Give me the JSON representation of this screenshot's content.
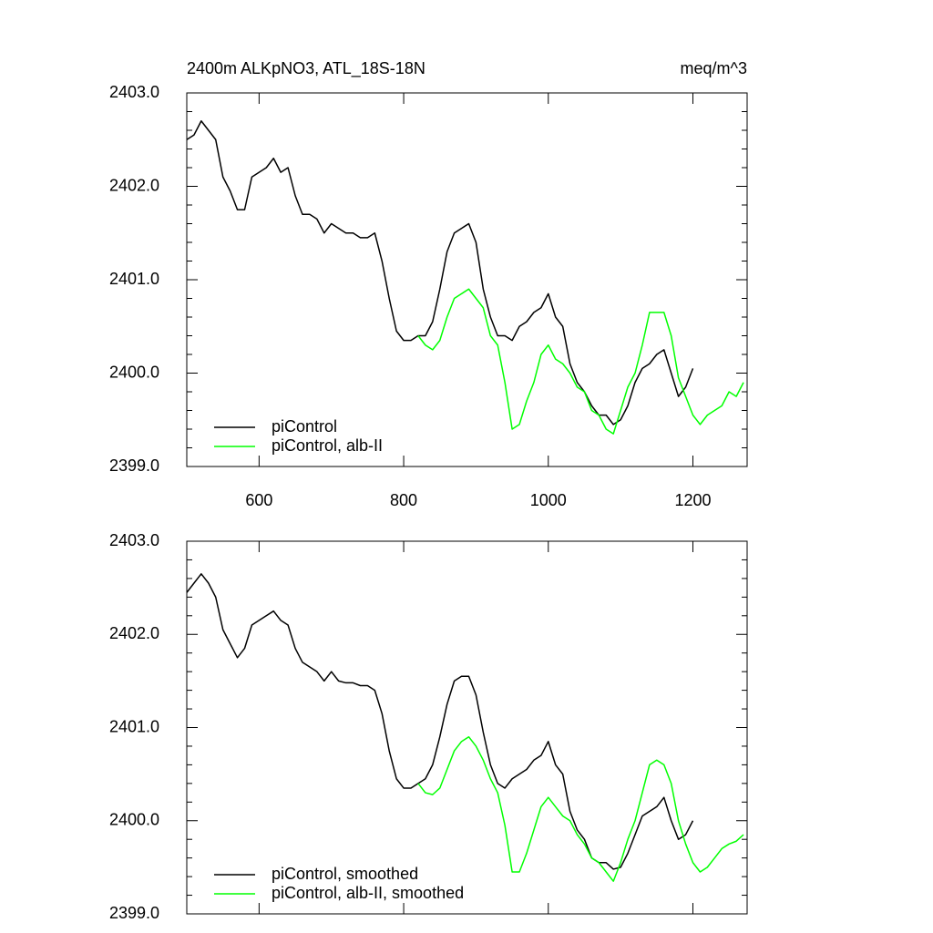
{
  "chart_data": [
    {
      "type": "line",
      "title": "2400m ALKpNO3, ATL_18S-18N",
      "right_title": "meq/m^3",
      "xlim": [
        500,
        1275
      ],
      "xticks": [
        600,
        800,
        1000,
        1200
      ],
      "xtick_labels": true,
      "ylim": [
        2399,
        2403
      ],
      "yticks": [
        {
          "value": 2399,
          "label": "2399.0"
        },
        {
          "value": 2400,
          "label": "2400.0"
        },
        {
          "value": 2401,
          "label": "2401.0"
        },
        {
          "value": 2402,
          "label": "2402.0"
        },
        {
          "value": 2403,
          "label": "2403.0"
        }
      ],
      "legend": "lower left",
      "series": [
        {
          "name": "piControl",
          "color": "#000000",
          "x": [
            500,
            510,
            520,
            530,
            540,
            550,
            560,
            570,
            580,
            590,
            600,
            610,
            620,
            630,
            640,
            650,
            660,
            670,
            680,
            690,
            700,
            710,
            720,
            730,
            740,
            750,
            760,
            770,
            780,
            790,
            800,
            810,
            820,
            830,
            840,
            850,
            860,
            870,
            880,
            890,
            900,
            910,
            920,
            930,
            940,
            950,
            960,
            970,
            980,
            990,
            1000,
            1010,
            1020,
            1030,
            1040,
            1050,
            1060,
            1070,
            1080,
            1090,
            1100,
            1110,
            1120,
            1130,
            1140,
            1150,
            1160,
            1170,
            1180,
            1190,
            1200
          ],
          "values": [
            2402.5,
            2402.55,
            2402.7,
            2402.6,
            2402.5,
            2402.1,
            2401.95,
            2401.75,
            2401.75,
            2402.1,
            2402.15,
            2402.2,
            2402.3,
            2402.15,
            2402.2,
            2401.9,
            2401.7,
            2401.7,
            2401.65,
            2401.5,
            2401.6,
            2401.55,
            2401.5,
            2401.5,
            2401.45,
            2401.45,
            2401.5,
            2401.2,
            2400.8,
            2400.45,
            2400.35,
            2400.35,
            2400.4,
            2400.4,
            2400.55,
            2400.9,
            2401.3,
            2401.5,
            2401.55,
            2401.6,
            2401.4,
            2400.9,
            2400.6,
            2400.4,
            2400.4,
            2400.35,
            2400.5,
            2400.55,
            2400.65,
            2400.7,
            2400.85,
            2400.6,
            2400.5,
            2400.1,
            2399.9,
            2399.8,
            2399.65,
            2399.55,
            2399.55,
            2399.45,
            2399.5,
            2399.65,
            2399.9,
            2400.05,
            2400.1,
            2400.2,
            2400.25,
            2400.0,
            2399.75,
            2399.85,
            2400.05
          ]
        },
        {
          "name": "piControl, alb-II",
          "color": "#00ff00",
          "x": [
            820,
            830,
            840,
            850,
            860,
            870,
            880,
            890,
            900,
            910,
            920,
            930,
            940,
            950,
            960,
            970,
            980,
            990,
            1000,
            1010,
            1020,
            1030,
            1040,
            1050,
            1060,
            1070,
            1080,
            1090,
            1100,
            1110,
            1120,
            1130,
            1140,
            1150,
            1160,
            1170,
            1180,
            1190,
            1200,
            1210,
            1220,
            1230,
            1240,
            1250,
            1260,
            1270
          ],
          "values": [
            2400.4,
            2400.3,
            2400.25,
            2400.35,
            2400.6,
            2400.8,
            2400.85,
            2400.9,
            2400.8,
            2400.7,
            2400.4,
            2400.3,
            2399.9,
            2399.4,
            2399.45,
            2399.7,
            2399.9,
            2400.2,
            2400.3,
            2400.15,
            2400.1,
            2400.0,
            2399.85,
            2399.8,
            2399.6,
            2399.55,
            2399.4,
            2399.35,
            2399.6,
            2399.85,
            2400.0,
            2400.3,
            2400.65,
            2400.65,
            2400.65,
            2400.4,
            2399.95,
            2399.75,
            2399.55,
            2399.45,
            2399.55,
            2399.6,
            2399.65,
            2399.8,
            2399.75,
            2399.9
          ]
        }
      ]
    },
    {
      "type": "line",
      "xlim": [
        500,
        1275
      ],
      "xticks": [
        600,
        800,
        1000,
        1200
      ],
      "xtick_labels": false,
      "ylim": [
        2399,
        2403
      ],
      "yticks": [
        {
          "value": 2399,
          "label": "2399.0"
        },
        {
          "value": 2400,
          "label": "2400.0"
        },
        {
          "value": 2401,
          "label": "2401.0"
        },
        {
          "value": 2402,
          "label": "2402.0"
        },
        {
          "value": 2403,
          "label": "2403.0"
        }
      ],
      "legend": "lower left",
      "series": [
        {
          "name": "piControl, smoothed",
          "color": "#000000",
          "x": [
            500,
            510,
            520,
            530,
            540,
            550,
            560,
            570,
            580,
            590,
            600,
            610,
            620,
            630,
            640,
            650,
            660,
            670,
            680,
            690,
            700,
            710,
            720,
            730,
            740,
            750,
            760,
            770,
            780,
            790,
            800,
            810,
            820,
            830,
            840,
            850,
            860,
            870,
            880,
            890,
            900,
            910,
            920,
            930,
            940,
            950,
            960,
            970,
            980,
            990,
            1000,
            1010,
            1020,
            1030,
            1040,
            1050,
            1060,
            1070,
            1080,
            1090,
            1100,
            1110,
            1120,
            1130,
            1140,
            1150,
            1160,
            1170,
            1180,
            1190,
            1200
          ],
          "values": [
            2402.45,
            2402.55,
            2402.65,
            2402.55,
            2402.4,
            2402.05,
            2401.9,
            2401.75,
            2401.85,
            2402.1,
            2402.15,
            2402.2,
            2402.25,
            2402.15,
            2402.1,
            2401.85,
            2401.7,
            2401.65,
            2401.6,
            2401.5,
            2401.6,
            2401.5,
            2401.48,
            2401.48,
            2401.45,
            2401.45,
            2401.4,
            2401.15,
            2400.75,
            2400.45,
            2400.35,
            2400.35,
            2400.4,
            2400.45,
            2400.6,
            2400.9,
            2401.25,
            2401.5,
            2401.55,
            2401.55,
            2401.35,
            2400.95,
            2400.6,
            2400.4,
            2400.35,
            2400.45,
            2400.5,
            2400.55,
            2400.65,
            2400.7,
            2400.85,
            2400.6,
            2400.5,
            2400.1,
            2399.9,
            2399.8,
            2399.6,
            2399.55,
            2399.55,
            2399.48,
            2399.5,
            2399.65,
            2399.85,
            2400.05,
            2400.1,
            2400.15,
            2400.25,
            2400.0,
            2399.8,
            2399.85,
            2400.0
          ]
        },
        {
          "name": "piControl, alb-II, smoothed",
          "color": "#00ff00",
          "x": [
            820,
            830,
            840,
            850,
            860,
            870,
            880,
            890,
            900,
            910,
            920,
            930,
            940,
            950,
            960,
            970,
            980,
            990,
            1000,
            1010,
            1020,
            1030,
            1040,
            1050,
            1060,
            1070,
            1080,
            1090,
            1100,
            1110,
            1120,
            1130,
            1140,
            1150,
            1160,
            1170,
            1180,
            1190,
            1200,
            1210,
            1220,
            1230,
            1240,
            1250,
            1260,
            1270
          ],
          "values": [
            2400.4,
            2400.3,
            2400.28,
            2400.35,
            2400.55,
            2400.75,
            2400.85,
            2400.9,
            2400.8,
            2400.65,
            2400.45,
            2400.3,
            2399.95,
            2399.45,
            2399.45,
            2399.65,
            2399.9,
            2400.15,
            2400.25,
            2400.15,
            2400.05,
            2400.0,
            2399.85,
            2399.75,
            2399.6,
            2399.55,
            2399.45,
            2399.35,
            2399.55,
            2399.8,
            2400.0,
            2400.3,
            2400.6,
            2400.65,
            2400.6,
            2400.4,
            2400.0,
            2399.75,
            2399.55,
            2399.45,
            2399.5,
            2399.6,
            2399.7,
            2399.75,
            2399.78,
            2399.85
          ]
        }
      ]
    }
  ]
}
